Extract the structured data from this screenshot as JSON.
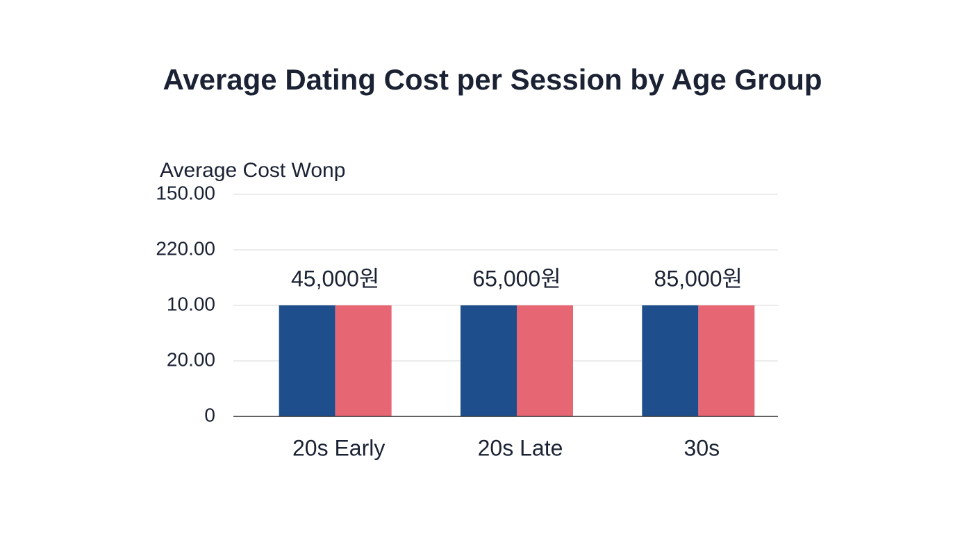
{
  "chart_data": {
    "type": "bar",
    "title": "Average Dating Cost per Session by Age Group",
    "y_label": "Average Cost Wonp",
    "categories": [
      "20s Early",
      "20s Late",
      "30s"
    ],
    "series": [
      {
        "color": "#1f4e8c",
        "values": [
          2,
          2,
          2
        ]
      },
      {
        "color": "#e76673",
        "values": [
          2,
          2,
          2
        ]
      }
    ],
    "annotations": [
      "45,000원",
      "65,000원",
      "85,000원"
    ],
    "ylim": [
      0,
      4
    ],
    "yticks": [
      0,
      {
        "value": 1,
        "label": "20.00"
      },
      {
        "value": 2,
        "label": "10.00"
      },
      {
        "value": 3,
        "label": "220.00"
      },
      {
        "value": 4,
        "label": "150.00"
      }
    ],
    "grid": true
  }
}
